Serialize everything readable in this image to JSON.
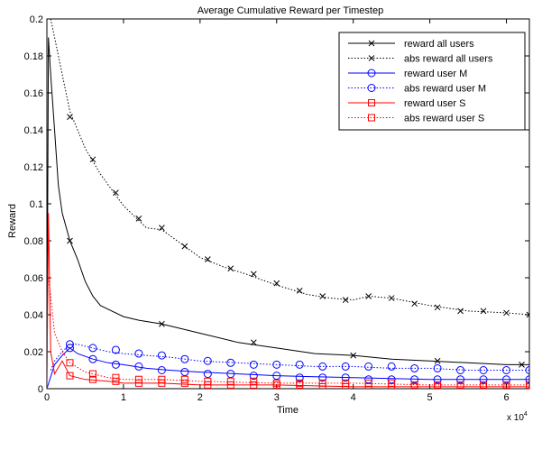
{
  "chart_data": {
    "type": "line",
    "title": "Average Cumulative Reward per Timestep",
    "xlabel": "Time",
    "ylabel": "Reward",
    "x_multiplier_label": "x 10",
    "x_multiplier_exponent": "4",
    "xlim": [
      0,
      6.3
    ],
    "ylim": [
      0,
      0.2
    ],
    "x_ticks": [
      0,
      1,
      2,
      3,
      4,
      5,
      6
    ],
    "y_ticks": [
      0,
      0.02,
      0.04,
      0.06,
      0.08,
      0.1,
      0.12,
      0.14,
      0.16,
      0.18,
      0.2
    ],
    "x_tick_labels": [
      "0",
      "1",
      "2",
      "3",
      "4",
      "5",
      "6"
    ],
    "y_tick_labels": [
      "0",
      "0.02",
      "0.04",
      "0.06",
      "0.08",
      "0.1",
      "0.12",
      "0.14",
      "0.16",
      "0.18",
      "0.2"
    ],
    "grid": false,
    "legend_position": "top-right",
    "series": [
      {
        "name": "reward all users",
        "color": "#000000",
        "line": "solid",
        "marker": "x",
        "x": [
          0,
          0.02,
          0.05,
          0.1,
          0.15,
          0.2,
          0.3,
          0.4,
          0.5,
          0.6,
          0.7,
          0.8,
          1.0,
          1.2,
          1.5,
          2.0,
          2.5,
          3.0,
          3.5,
          4.0,
          4.5,
          5.0,
          5.5,
          6.0,
          6.3
        ],
        "y": [
          0.0,
          0.19,
          0.17,
          0.14,
          0.11,
          0.095,
          0.08,
          0.07,
          0.058,
          0.05,
          0.045,
          0.043,
          0.039,
          0.037,
          0.035,
          0.03,
          0.025,
          0.022,
          0.019,
          0.018,
          0.016,
          0.015,
          0.014,
          0.013,
          0.013
        ],
        "marker_x": [
          0.3,
          1.5,
          2.7,
          4.0,
          5.1,
          6.2
        ],
        "marker_y": [
          0.08,
          0.035,
          0.025,
          0.018,
          0.015,
          0.013
        ]
      },
      {
        "name": "abs reward all users",
        "color": "#000000",
        "line": "dotted",
        "marker": "x",
        "x": [
          0.05,
          0.1,
          0.2,
          0.3,
          0.5,
          0.7,
          1.0,
          1.3,
          1.5,
          1.7,
          2.0,
          2.3,
          2.6,
          3.0,
          3.4,
          3.7,
          4.0,
          4.2,
          4.5,
          5.0,
          5.5,
          6.0,
          6.3
        ],
        "y": [
          0.2,
          0.19,
          0.17,
          0.15,
          0.13,
          0.116,
          0.099,
          0.087,
          0.086,
          0.08,
          0.071,
          0.066,
          0.062,
          0.056,
          0.051,
          0.049,
          0.048,
          0.05,
          0.049,
          0.045,
          0.042,
          0.041,
          0.04
        ],
        "marker_x": [
          0.3,
          0.6,
          0.9,
          1.2,
          1.5,
          1.8,
          2.1,
          2.4,
          2.7,
          3.0,
          3.3,
          3.6,
          3.9,
          4.2,
          4.5,
          4.8,
          5.1,
          5.4,
          5.7,
          6.0,
          6.3
        ],
        "marker_y": [
          0.147,
          0.124,
          0.106,
          0.092,
          0.087,
          0.077,
          0.07,
          0.065,
          0.062,
          0.057,
          0.053,
          0.05,
          0.048,
          0.05,
          0.049,
          0.046,
          0.044,
          0.042,
          0.042,
          0.041,
          0.04
        ]
      },
      {
        "name": "reward user M",
        "color": "#0000ff",
        "line": "solid",
        "marker": "o",
        "x": [
          0,
          0.1,
          0.2,
          0.3,
          0.4,
          0.6,
          0.8,
          1.0,
          1.3,
          1.6,
          2.0,
          2.5,
          3.0,
          3.5,
          4.0,
          4.5,
          5.0,
          5.5,
          6.0,
          6.3
        ],
        "y": [
          0.0,
          0.013,
          0.018,
          0.022,
          0.019,
          0.016,
          0.014,
          0.013,
          0.011,
          0.01,
          0.009,
          0.008,
          0.007,
          0.0065,
          0.006,
          0.0055,
          0.005,
          0.005,
          0.005,
          0.005
        ],
        "marker_x": [
          0.3,
          0.6,
          0.9,
          1.2,
          1.5,
          1.8,
          2.1,
          2.4,
          2.7,
          3.0,
          3.3,
          3.6,
          3.9,
          4.2,
          4.5,
          4.8,
          5.1,
          5.4,
          5.7,
          6.0,
          6.3
        ],
        "marker_y": [
          0.022,
          0.016,
          0.013,
          0.012,
          0.01,
          0.009,
          0.008,
          0.008,
          0.007,
          0.007,
          0.006,
          0.006,
          0.006,
          0.005,
          0.005,
          0.005,
          0.005,
          0.005,
          0.005,
          0.005,
          0.005
        ]
      },
      {
        "name": "abs reward user M",
        "color": "#0000ff",
        "line": "dotted",
        "marker": "o",
        "x": [
          0.05,
          0.1,
          0.2,
          0.3,
          0.4,
          0.6,
          0.8,
          1.0,
          1.3,
          1.6,
          2.0,
          2.5,
          3.0,
          3.5,
          4.0,
          4.5,
          5.0,
          5.5,
          6.0,
          6.3
        ],
        "y": [
          0.01,
          0.015,
          0.02,
          0.024,
          0.024,
          0.022,
          0.02,
          0.019,
          0.018,
          0.017,
          0.015,
          0.014,
          0.013,
          0.012,
          0.012,
          0.011,
          0.011,
          0.01,
          0.01,
          0.01
        ],
        "marker_x": [
          0.3,
          0.6,
          0.9,
          1.2,
          1.5,
          1.8,
          2.1,
          2.4,
          2.7,
          3.0,
          3.3,
          3.6,
          3.9,
          4.2,
          4.5,
          4.8,
          5.1,
          5.4,
          5.7,
          6.0,
          6.3
        ],
        "marker_y": [
          0.024,
          0.022,
          0.021,
          0.019,
          0.018,
          0.016,
          0.015,
          0.014,
          0.013,
          0.013,
          0.013,
          0.012,
          0.012,
          0.012,
          0.012,
          0.011,
          0.011,
          0.01,
          0.01,
          0.01,
          0.01
        ]
      },
      {
        "name": "reward user S",
        "color": "#ff0000",
        "line": "solid",
        "marker": "square",
        "x": [
          0,
          0.02,
          0.05,
          0.1,
          0.2,
          0.3,
          0.5,
          0.8,
          1.0,
          1.5,
          2.0,
          3.0,
          4.0,
          5.0,
          6.0,
          6.3
        ],
        "y": [
          0.0,
          0.095,
          0.02,
          0.008,
          0.015,
          0.007,
          0.005,
          0.004,
          0.003,
          0.003,
          0.002,
          0.002,
          0.001,
          0.001,
          0.001,
          0.001
        ],
        "marker_x": [
          0.3,
          0.6,
          0.9,
          1.2,
          1.5,
          1.8,
          2.1,
          2.4,
          2.7,
          3.0,
          3.3,
          3.6,
          3.9,
          4.2,
          4.5,
          4.8,
          5.1,
          5.4,
          5.7,
          6.0,
          6.3
        ],
        "marker_y": [
          0.007,
          0.005,
          0.004,
          0.003,
          0.003,
          0.003,
          0.002,
          0.002,
          0.002,
          0.002,
          0.002,
          0.001,
          0.001,
          0.001,
          0.001,
          0.001,
          0.001,
          0.001,
          0.001,
          0.001,
          0.001
        ]
      },
      {
        "name": "abs reward user S",
        "color": "#ff0000",
        "line": "dotted",
        "marker": "square",
        "x": [
          0.02,
          0.05,
          0.1,
          0.2,
          0.3,
          0.5,
          0.8,
          1.0,
          1.5,
          2.0,
          3.0,
          4.0,
          5.0,
          6.0,
          6.3
        ],
        "y": [
          0.06,
          0.05,
          0.03,
          0.02,
          0.014,
          0.009,
          0.006,
          0.005,
          0.005,
          0.004,
          0.003,
          0.003,
          0.002,
          0.002,
          0.002
        ],
        "marker_x": [
          0.3,
          0.6,
          0.9,
          1.2,
          1.5,
          1.8,
          2.1,
          2.4,
          2.7,
          3.0,
          3.3,
          3.6,
          3.9,
          4.2,
          4.5,
          4.8,
          5.1,
          5.4,
          5.7,
          6.0,
          6.3
        ],
        "marker_y": [
          0.014,
          0.008,
          0.006,
          0.005,
          0.005,
          0.005,
          0.004,
          0.004,
          0.004,
          0.003,
          0.003,
          0.003,
          0.003,
          0.003,
          0.003,
          0.002,
          0.002,
          0.002,
          0.002,
          0.002,
          0.002
        ]
      }
    ]
  }
}
